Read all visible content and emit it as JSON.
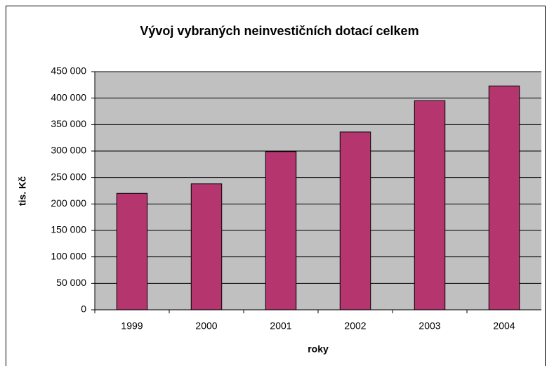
{
  "chart_data": {
    "type": "bar",
    "title": "Vývoj vybraných neinvestičních dotací celkem",
    "x_label": "roky",
    "y_label": "tis. Kč",
    "categories": [
      "1999",
      "2000",
      "2001",
      "2002",
      "2003",
      "2004"
    ],
    "values": [
      220000,
      238000,
      299000,
      336000,
      395000,
      423000
    ],
    "color": "#b5366f",
    "plot_background": "#c0c0c0",
    "ylim": [
      0,
      450000
    ],
    "yticks": [
      0,
      {
        "value": 50000,
        "label": "50 000"
      },
      {
        "value": 100000,
        "label": "100 000"
      },
      {
        "value": 150000,
        "label": "150 000"
      },
      {
        "value": 200000,
        "label": "200 000"
      },
      {
        "value": 250000,
        "label": "250 000"
      },
      {
        "value": 300000,
        "label": "300 000"
      },
      {
        "value": 350000,
        "label": "350 000"
      },
      {
        "value": 400000,
        "label": "400 000"
      },
      {
        "value": 450000,
        "label": "450 000"
      }
    ],
    "grid": true
  }
}
